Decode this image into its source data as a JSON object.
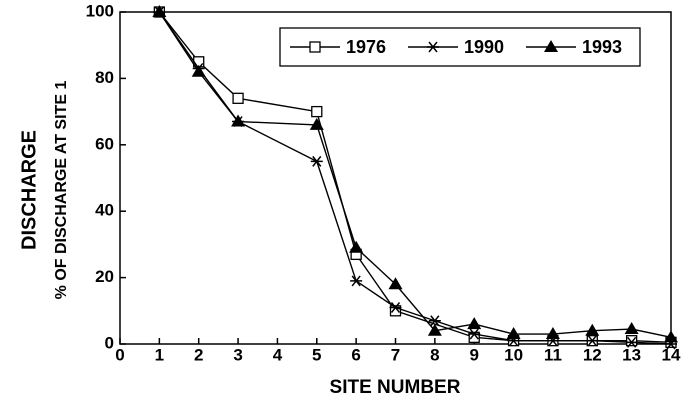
{
  "chart_data": {
    "type": "line",
    "ylabel": "DISCHARGE",
    "ylabel2": "% OF DISCHARGE AT SITE 1",
    "xlabel": "SITE NUMBER",
    "xlim": [
      0,
      14
    ],
    "xticks": [
      0,
      1,
      2,
      3,
      4,
      5,
      6,
      7,
      8,
      9,
      10,
      11,
      12,
      13,
      14
    ],
    "ylim": [
      0,
      100
    ],
    "yticks": [
      0,
      20,
      40,
      60,
      80,
      100
    ],
    "legend": "top-right",
    "series": [
      {
        "name": "1976",
        "color": "#000000",
        "marker": "square",
        "x": [
          1,
          2,
          3,
          5,
          6,
          7,
          9,
          10,
          11,
          12,
          13,
          14
        ],
        "values": [
          100,
          85,
          74,
          70,
          27,
          10,
          2,
          1,
          1,
          1,
          1,
          0.5
        ]
      },
      {
        "name": "1990",
        "color": "#000000",
        "marker": "star",
        "x": [
          1,
          2,
          3,
          5,
          6,
          7,
          8,
          9,
          10,
          11,
          12,
          13,
          14
        ],
        "values": [
          100,
          83,
          67,
          55,
          19,
          11,
          7,
          3,
          1,
          1,
          1,
          0.5,
          0
        ]
      },
      {
        "name": "1993",
        "color": "#000000",
        "marker": "triangle",
        "x": [
          1,
          2,
          3,
          5,
          6,
          7,
          8,
          9,
          10,
          11,
          12,
          13,
          14
        ],
        "values": [
          100,
          82,
          67,
          66,
          29,
          18,
          4,
          6,
          3,
          3,
          4,
          4.5,
          2
        ]
      }
    ]
  }
}
